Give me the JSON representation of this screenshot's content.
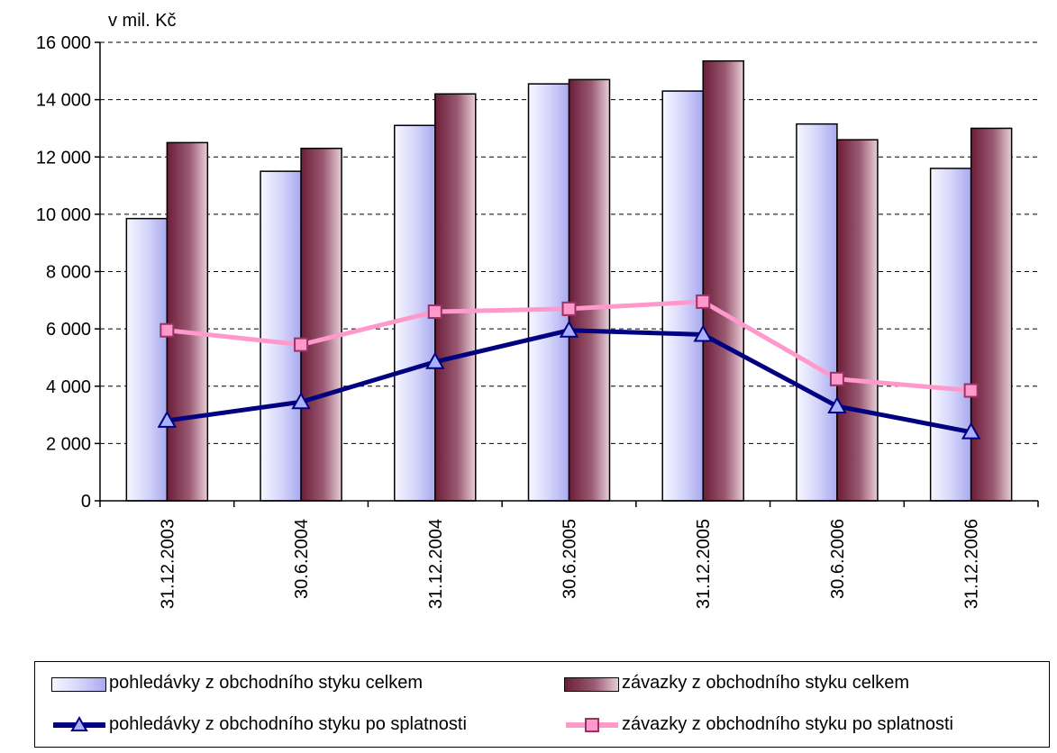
{
  "chart_data": {
    "type": "bar",
    "unit_label": "v mil. Kč",
    "categories": [
      "31.12.2003",
      "30.6.2004",
      "31.12.2004",
      "30.6.2005",
      "31.12.2005",
      "30.6.2006",
      "31.12.2006"
    ],
    "ylim": [
      0,
      16000
    ],
    "yticks": [
      "0",
      "2 000",
      "4 000",
      "6 000",
      "8 000",
      "10 000",
      "12 000",
      "14 000",
      "16 000"
    ],
    "grid": true,
    "legend_position": "bottom",
    "bar_series": [
      {
        "name": "pohledávky z obchodního styku celkem",
        "values": [
          9850,
          11500,
          13100,
          14550,
          14300,
          13150,
          11600
        ],
        "color": "#d8d8fa"
      },
      {
        "name": "závazky z obchodního styku celkem",
        "values": [
          12500,
          12300,
          14200,
          14700,
          15350,
          12600,
          13000
        ],
        "color": "#7a2a44"
      }
    ],
    "line_series": [
      {
        "name": "pohledávky z obchodního styku po splatnosti",
        "values": [
          2800,
          3450,
          4850,
          5950,
          5800,
          3300,
          2400
        ],
        "color": "#000080",
        "marker": "triangle"
      },
      {
        "name": "závazky z obchodního styku po splatnosti",
        "values": [
          5950,
          5450,
          6600,
          6700,
          6950,
          4250,
          3850
        ],
        "color": "#ff99cc",
        "marker": "square"
      }
    ]
  }
}
